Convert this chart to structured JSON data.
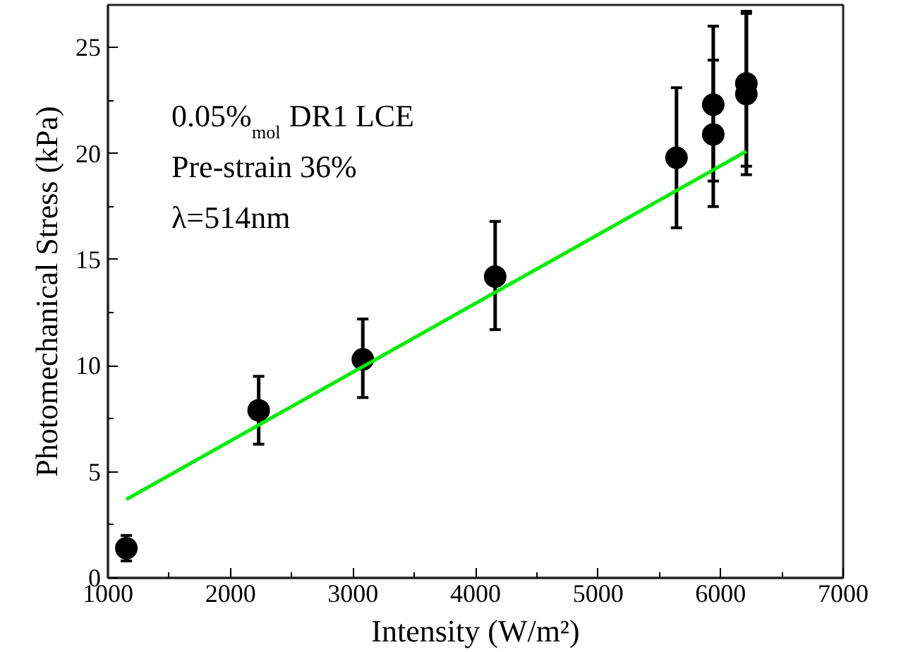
{
  "chart_data": {
    "type": "scatter",
    "xlabel": "Intensity (W/m²)",
    "ylabel": "Photomechanical Stress (kPa)",
    "xlim": [
      1000,
      7000
    ],
    "ylim": [
      0,
      27
    ],
    "xticks": [
      1000,
      2000,
      3000,
      4000,
      5000,
      6000,
      7000
    ],
    "yticks": [
      0,
      5,
      10,
      15,
      20,
      25
    ],
    "grid": false,
    "marker": "circle",
    "annotations": [
      "0.05%$_{mol}$ DR1 LCE",
      "Pre-strain 36%",
      "λ=514nm"
    ],
    "series": [
      {
        "color": "#000000",
        "x": [
          1150,
          2230,
          3080,
          4160,
          5640,
          5940,
          5940,
          6210,
          6210
        ],
        "values": [
          1.4,
          7.9,
          10.3,
          14.2,
          19.8,
          20.9,
          22.3,
          22.8,
          23.3
        ],
        "errors": [
          [
            0.8,
            2.0
          ],
          [
            6.3,
            9.5
          ],
          [
            8.5,
            12.2
          ],
          [
            11.7,
            16.8
          ],
          [
            16.5,
            23.1
          ],
          [
            17.5,
            24.4
          ],
          [
            18.7,
            26.0
          ],
          [
            19.0,
            26.6
          ],
          [
            19.4,
            26.7
          ]
        ]
      },
      {
        "type": "line",
        "marker": "none",
        "color": "#00ee00",
        "x": [
          1150,
          6210
        ],
        "values": [
          3.7,
          20.1
        ]
      }
    ]
  }
}
